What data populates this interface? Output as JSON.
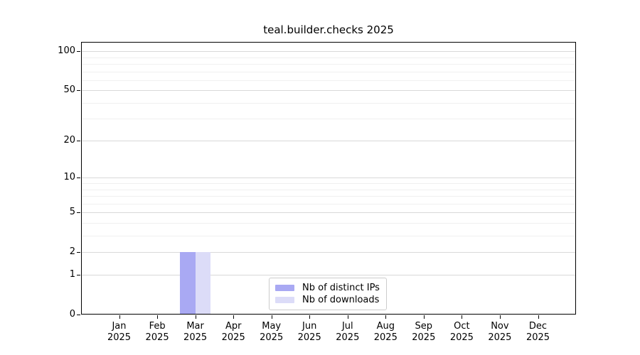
{
  "colors": {
    "background": "#ffffff",
    "axis": "#000000",
    "text": "#000000",
    "grid_major": "#d9d9d9",
    "grid_minor": "#f0f0f0",
    "legend_border": "#cccccc",
    "bar_distinct_ips": "#a9a9f3",
    "bar_downloads": "#dcdcf8"
  },
  "chart_data": {
    "type": "bar",
    "title": "teal.builder.checks 2025",
    "year": "2025",
    "categories": [
      "Jan",
      "Feb",
      "Mar",
      "Apr",
      "May",
      "Jun",
      "Jul",
      "Aug",
      "Sep",
      "Oct",
      "Nov",
      "Dec"
    ],
    "series": [
      {
        "name": "Nb of distinct IPs",
        "color": "#a9a9f3",
        "values": [
          0,
          0,
          2,
          0,
          0,
          0,
          0,
          0,
          0,
          0,
          0,
          0
        ]
      },
      {
        "name": "Nb of downloads",
        "color": "#dcdcf8",
        "values": [
          0,
          0,
          2,
          0,
          0,
          0,
          0,
          0,
          0,
          0,
          0,
          0
        ]
      }
    ],
    "xlabel": "",
    "ylabel": "",
    "y_scale": "log1p",
    "y_max": 118,
    "y_ticks": [
      0,
      1,
      2,
      5,
      10,
      20,
      50,
      100
    ],
    "y_minor_ticks": [
      3,
      4,
      6,
      7,
      8,
      9,
      30,
      40,
      60,
      70,
      80,
      90
    ],
    "grid": true,
    "legend_position": "bottom-center"
  }
}
